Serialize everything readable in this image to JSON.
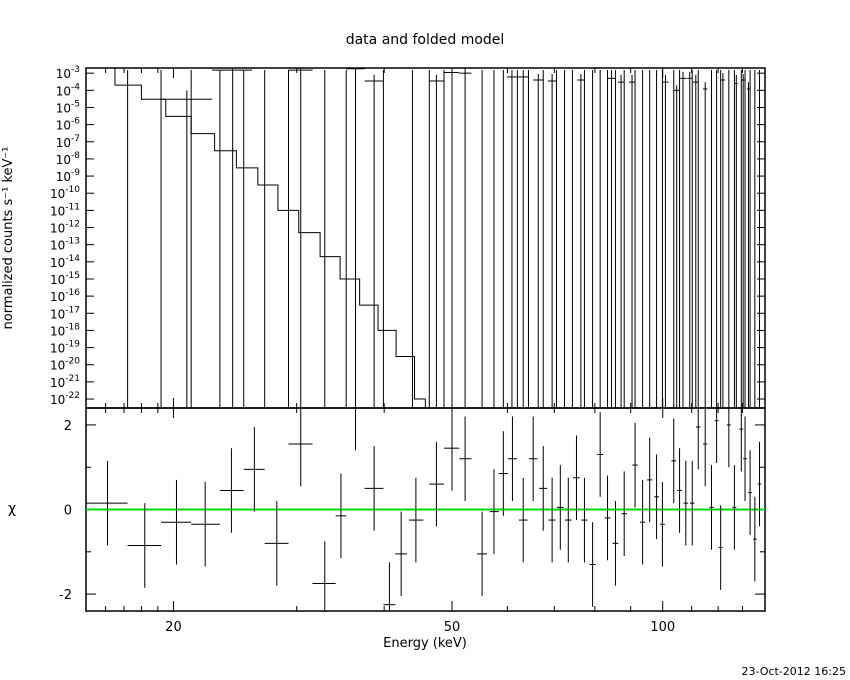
{
  "chart_data": [
    {
      "type": "scatter",
      "panel": "top",
      "title": "data and folded model",
      "ylabel": "normalized counts s⁻¹ keV⁻¹",
      "yscale": "log",
      "xscale": "log",
      "xlim": [
        15,
        140
      ],
      "ylim": [
        3e-23,
        0.002
      ],
      "ytick_exponents": [
        -3,
        -4,
        -5,
        -6,
        -7,
        -8,
        -9,
        -10,
        -11,
        -12,
        -13,
        -14,
        -15,
        -16,
        -17,
        -18,
        -19,
        -20,
        -21,
        -22
      ],
      "ytick_base": "10",
      "data_points": [
        {
          "x": 20.9,
          "xerr": [
            19.2,
            22.7
          ],
          "y": 3e-05,
          "ylo": 1e-24,
          "yhi": 0.0001
        },
        {
          "x": 24.3,
          "xerr": [
            22.7,
            25.9
          ],
          "y": 0.0015,
          "ylo": 1e-24,
          "yhi": 0.0018
        },
        {
          "x": 30.4,
          "xerr": [
            29.2,
            31.6
          ],
          "y": 0.0015,
          "ylo": 1e-24,
          "yhi": 0.0018
        },
        {
          "x": 36.4,
          "xerr": [
            35.3,
            37.5
          ],
          "y": 0.0018,
          "ylo": 1e-24,
          "yhi": 0.002
        },
        {
          "x": 38.7,
          "xerr": [
            37.5,
            39.9
          ],
          "y": 0.00035,
          "ylo": 1e-24,
          "yhi": 0.0008
        },
        {
          "x": 47.5,
          "xerr": [
            46.4,
            48.7
          ],
          "y": 0.00035,
          "ylo": 1e-24,
          "yhi": 0.0008
        },
        {
          "x": 50.0,
          "xerr": [
            48.7,
            51.2
          ],
          "y": 0.0011,
          "ylo": 1e-24,
          "yhi": 0.002
        },
        {
          "x": 52.2,
          "xerr": [
            51.2,
            53.3
          ],
          "y": 0.001,
          "ylo": 1e-24,
          "yhi": 0.002
        },
        {
          "x": 60.9,
          "xerr": [
            59.9,
            62.0
          ],
          "y": 0.0006,
          "ylo": 1e-24,
          "yhi": 0.0015
        },
        {
          "x": 63.2,
          "xerr": [
            62.0,
            64.3
          ],
          "y": 0.0006,
          "ylo": 1e-24,
          "yhi": 0.0015
        },
        {
          "x": 66.4,
          "xerr": [
            65.3,
            67.5
          ],
          "y": 0.0004,
          "ylo": 1e-24,
          "yhi": 0.0009
        },
        {
          "x": 69.5,
          "xerr": [
            68.5,
            70.5
          ],
          "y": 0.00035,
          "ylo": 1e-24,
          "yhi": 0.0009
        },
        {
          "x": 76.4,
          "xerr": [
            75.5,
            77.3
          ],
          "y": 0.0004,
          "ylo": 1e-24,
          "yhi": 0.0009
        },
        {
          "x": 84.5,
          "xerr": [
            83.4,
            85.6
          ],
          "y": 0.0005,
          "ylo": 1e-24,
          "yhi": 0.0015
        },
        {
          "x": 87.2,
          "xerr": [
            86.3,
            88.1
          ],
          "y": 0.0003,
          "ylo": 1e-24,
          "yhi": 0.0008
        },
        {
          "x": 90.4,
          "xerr": [
            89.5,
            91.3
          ],
          "y": 0.0003,
          "ylo": 1e-24,
          "yhi": 0.0008
        },
        {
          "x": 100.9,
          "xerr": [
            99.9,
            101.9
          ],
          "y": 0.0003,
          "ylo": 1e-24,
          "yhi": 0.0008
        },
        {
          "x": 104.7,
          "xerr": [
            103.7,
            105.7
          ],
          "y": 0.0001,
          "ylo": 1e-24,
          "yhi": 0.0002
        },
        {
          "x": 106.9,
          "xerr": [
            105.7,
            108.1
          ],
          "y": 0.0005,
          "ylo": 1e-24,
          "yhi": 0.0012
        },
        {
          "x": 109.3,
          "xerr": [
            108.4,
            110.2
          ],
          "y": 0.0005,
          "ylo": 1e-24,
          "yhi": 0.0012
        },
        {
          "x": 111.5,
          "xerr": [
            110.5,
            112.4
          ],
          "y": 0.0003,
          "ylo": 1e-24,
          "yhi": 0.0008
        },
        {
          "x": 115.0,
          "xerr": [
            114.2,
            115.8
          ],
          "y": 0.00012,
          "ylo": 1e-24,
          "yhi": 0.0003
        },
        {
          "x": 121.9,
          "xerr": [
            121.0,
            122.8
          ],
          "y": 0.0004,
          "ylo": 1e-24,
          "yhi": 0.001
        },
        {
          "x": 127.4,
          "xerr": [
            126.6,
            128.1
          ],
          "y": 0.00025,
          "ylo": 1e-24,
          "yhi": 0.0008
        },
        {
          "x": 130.3,
          "xerr": [
            129.5,
            131.1
          ],
          "y": 0.0004,
          "ylo": 1e-24,
          "yhi": 0.0009
        },
        {
          "x": 132.6,
          "xerr": [
            131.9,
            133.3
          ],
          "y": 0.00012,
          "ylo": 1e-24,
          "yhi": 0.0003
        }
      ],
      "upper_limit_x": [
        17.2,
        19.2,
        21.2,
        23.3,
        25.2,
        27.0,
        29.2,
        32.9,
        35.3,
        39.9,
        43.9,
        46.4,
        48.7,
        55.2,
        57.4,
        59.2,
        62.0,
        64.3,
        67.5,
        70.5,
        72.4,
        74.3,
        77.3,
        79.4,
        81.4,
        83.4,
        85.6,
        88.1,
        91.3,
        93.6,
        95.8,
        98.0,
        99.9,
        103.7,
        105.7,
        110.2,
        112.4,
        117.4,
        119.4,
        121.0,
        124.3,
        126.6,
        129.5,
        131.1,
        133.3,
        135.4,
        137.5
      ],
      "model_step": [
        {
          "x0": 15.0,
          "x1": 16.5,
          "y": 0.002
        },
        {
          "x0": 16.5,
          "x1": 18.0,
          "y": 0.0002
        },
        {
          "x0": 18.0,
          "x1": 19.5,
          "y": 3e-05
        },
        {
          "x0": 19.5,
          "x1": 21.2,
          "y": 3e-06
        },
        {
          "x0": 21.2,
          "x1": 22.9,
          "y": 3e-07
        },
        {
          "x0": 22.9,
          "x1": 24.6,
          "y": 3e-08
        },
        {
          "x0": 24.6,
          "x1": 26.4,
          "y": 3e-09
        },
        {
          "x0": 26.4,
          "x1": 28.2,
          "y": 3e-10
        },
        {
          "x0": 28.2,
          "x1": 30.2,
          "y": 1e-11
        },
        {
          "x0": 30.2,
          "x1": 32.4,
          "y": 5e-13
        },
        {
          "x0": 32.4,
          "x1": 34.6,
          "y": 2e-14
        },
        {
          "x0": 34.6,
          "x1": 36.9,
          "y": 1e-15
        },
        {
          "x0": 36.9,
          "x1": 39.2,
          "y": 3e-17
        },
        {
          "x0": 39.2,
          "x1": 41.6,
          "y": 1e-18
        },
        {
          "x0": 41.6,
          "x1": 44.2,
          "y": 3e-20
        },
        {
          "x0": 44.2,
          "x1": 45.8,
          "y": 1e-22
        },
        {
          "x0": 45.8,
          "x1": 47.0,
          "y": 1e-24
        }
      ]
    },
    {
      "type": "scatter",
      "panel": "bottom",
      "xlabel": "Energy (keV)",
      "ylabel": "χ",
      "xscale": "log",
      "xlim": [
        15,
        140
      ],
      "ylim": [
        -2.4,
        2.4
      ],
      "xticks": [
        20,
        50,
        100
      ],
      "yticks": [
        -2,
        0,
        2
      ],
      "zero_line_color": "#00dd00",
      "residuals": [
        {
          "x": 16.1,
          "x0": 15.0,
          "x1": 17.2,
          "y": 0.15,
          "err": 1.0
        },
        {
          "x": 18.2,
          "x0": 17.2,
          "x1": 19.2,
          "y": -0.85,
          "err": 1.0
        },
        {
          "x": 20.2,
          "x0": 19.2,
          "x1": 21.2,
          "y": -0.3,
          "err": 1.0
        },
        {
          "x": 22.2,
          "x0": 21.2,
          "x1": 23.3,
          "y": -0.35,
          "err": 1.0
        },
        {
          "x": 24.2,
          "x0": 23.3,
          "x1": 25.2,
          "y": 0.45,
          "err": 1.0
        },
        {
          "x": 26.1,
          "x0": 25.2,
          "x1": 27.0,
          "y": 0.95,
          "err": 1.0
        },
        {
          "x": 28.1,
          "x0": 27.0,
          "x1": 29.2,
          "y": -0.8,
          "err": 1.0
        },
        {
          "x": 30.4,
          "x0": 29.2,
          "x1": 31.6,
          "y": 1.55,
          "err": 1.0
        },
        {
          "x": 32.9,
          "x0": 31.6,
          "x1": 34.1,
          "y": -1.75,
          "err": 1.0
        },
        {
          "x": 34.7,
          "x0": 34.1,
          "x1": 35.3,
          "y": -0.15,
          "err": 1.0
        },
        {
          "x": 36.4,
          "x0": 35.3,
          "x1": 37.5,
          "y": 2.4,
          "err": 1.0
        },
        {
          "x": 38.7,
          "x0": 37.5,
          "x1": 39.9,
          "y": 0.5,
          "err": 1.0
        },
        {
          "x": 40.7,
          "x0": 39.9,
          "x1": 41.5,
          "y": -2.25,
          "err": 1.0
        },
        {
          "x": 42.3,
          "x0": 41.5,
          "x1": 43.1,
          "y": -1.05,
          "err": 1.0
        },
        {
          "x": 44.4,
          "x0": 43.4,
          "x1": 45.5,
          "y": -0.25,
          "err": 1.0
        },
        {
          "x": 47.5,
          "x0": 46.4,
          "x1": 48.7,
          "y": 0.6,
          "err": 1.0
        },
        {
          "x": 50.0,
          "x0": 48.7,
          "x1": 51.2,
          "y": 1.45,
          "err": 1.0
        },
        {
          "x": 52.2,
          "x0": 51.2,
          "x1": 53.3,
          "y": 1.2,
          "err": 1.0
        },
        {
          "x": 55.2,
          "x0": 54.3,
          "x1": 56.1,
          "y": -1.05,
          "err": 1.0
        },
        {
          "x": 57.4,
          "x0": 56.6,
          "x1": 58.3,
          "y": -0.05,
          "err": 1.0
        },
        {
          "x": 59.2,
          "x0": 58.3,
          "x1": 60.1,
          "y": 0.85,
          "err": 1.0
        },
        {
          "x": 61.0,
          "x0": 60.1,
          "x1": 61.9,
          "y": 1.2,
          "err": 1.0
        },
        {
          "x": 63.2,
          "x0": 62.3,
          "x1": 64.1,
          "y": -0.25,
          "err": 1.0
        },
        {
          "x": 65.3,
          "x0": 64.4,
          "x1": 66.2,
          "y": 1.2,
          "err": 1.0
        },
        {
          "x": 67.5,
          "x0": 66.6,
          "x1": 68.4,
          "y": 0.5,
          "err": 1.0
        },
        {
          "x": 69.5,
          "x0": 68.7,
          "x1": 70.3,
          "y": -0.25,
          "err": 1.0
        },
        {
          "x": 71.4,
          "x0": 70.6,
          "x1": 72.2,
          "y": 0.05,
          "err": 1.0
        },
        {
          "x": 73.3,
          "x0": 72.5,
          "x1": 74.1,
          "y": -0.25,
          "err": 1.0
        },
        {
          "x": 75.3,
          "x0": 74.5,
          "x1": 76.1,
          "y": 0.75,
          "err": 1.0
        },
        {
          "x": 77.3,
          "x0": 76.5,
          "x1": 78.1,
          "y": -0.25,
          "err": 1.0
        },
        {
          "x": 79.4,
          "x0": 78.6,
          "x1": 80.2,
          "y": -1.3,
          "err": 1.0
        },
        {
          "x": 81.4,
          "x0": 80.6,
          "x1": 82.2,
          "y": 1.3,
          "err": 1.0
        },
        {
          "x": 83.4,
          "x0": 82.6,
          "x1": 84.2,
          "y": -0.2,
          "err": 1.0
        },
        {
          "x": 85.6,
          "x0": 84.8,
          "x1": 86.4,
          "y": -0.8,
          "err": 1.0
        },
        {
          "x": 88.1,
          "x0": 87.3,
          "x1": 88.9,
          "y": -0.1,
          "err": 1.0
        },
        {
          "x": 91.3,
          "x0": 90.5,
          "x1": 92.1,
          "y": 1.05,
          "err": 1.0
        },
        {
          "x": 93.6,
          "x0": 92.8,
          "x1": 94.4,
          "y": -0.3,
          "err": 1.0
        },
        {
          "x": 95.8,
          "x0": 95.0,
          "x1": 96.6,
          "y": 0.7,
          "err": 1.0
        },
        {
          "x": 98.0,
          "x0": 97.2,
          "x1": 98.8,
          "y": 0.3,
          "err": 1.0
        },
        {
          "x": 99.9,
          "x0": 99.1,
          "x1": 100.7,
          "y": -0.35,
          "err": 1.0
        },
        {
          "x": 103.7,
          "x0": 102.9,
          "x1": 104.5,
          "y": 1.15,
          "err": 1.0
        },
        {
          "x": 105.7,
          "x0": 104.9,
          "x1": 106.5,
          "y": 0.45,
          "err": 1.0
        },
        {
          "x": 107.9,
          "x0": 107.1,
          "x1": 108.7,
          "y": 0.15,
          "err": 1.0
        },
        {
          "x": 110.2,
          "x0": 109.4,
          "x1": 111.0,
          "y": 0.15,
          "err": 1.0
        },
        {
          "x": 112.4,
          "x0": 111.6,
          "x1": 113.2,
          "y": 1.95,
          "err": 1.0
        },
        {
          "x": 115.0,
          "x0": 114.2,
          "x1": 115.8,
          "y": 1.55,
          "err": 1.0
        },
        {
          "x": 117.4,
          "x0": 116.6,
          "x1": 118.2,
          "y": 0.05,
          "err": 1.0
        },
        {
          "x": 119.4,
          "x0": 118.6,
          "x1": 120.2,
          "y": 2.1,
          "err": 1.0
        },
        {
          "x": 121.0,
          "x0": 120.2,
          "x1": 121.8,
          "y": -0.9,
          "err": 1.0
        },
        {
          "x": 124.3,
          "x0": 123.5,
          "x1": 125.1,
          "y": 2.0,
          "err": 1.0
        },
        {
          "x": 126.6,
          "x0": 125.8,
          "x1": 127.4,
          "y": 0.05,
          "err": 1.0
        },
        {
          "x": 129.5,
          "x0": 128.7,
          "x1": 130.3,
          "y": 1.9,
          "err": 1.0
        },
        {
          "x": 131.1,
          "x0": 130.3,
          "x1": 131.9,
          "y": 1.2,
          "err": 1.0
        },
        {
          "x": 133.3,
          "x0": 132.5,
          "x1": 134.1,
          "y": 0.4,
          "err": 1.0
        },
        {
          "x": 135.4,
          "x0": 134.6,
          "x1": 136.2,
          "y": -0.7,
          "err": 1.0
        },
        {
          "x": 137.5,
          "x0": 136.7,
          "x1": 138.3,
          "y": 0.6,
          "err": 1.0
        }
      ]
    }
  ],
  "footer": {
    "timestamp": "23-Oct-2012 16:25"
  }
}
